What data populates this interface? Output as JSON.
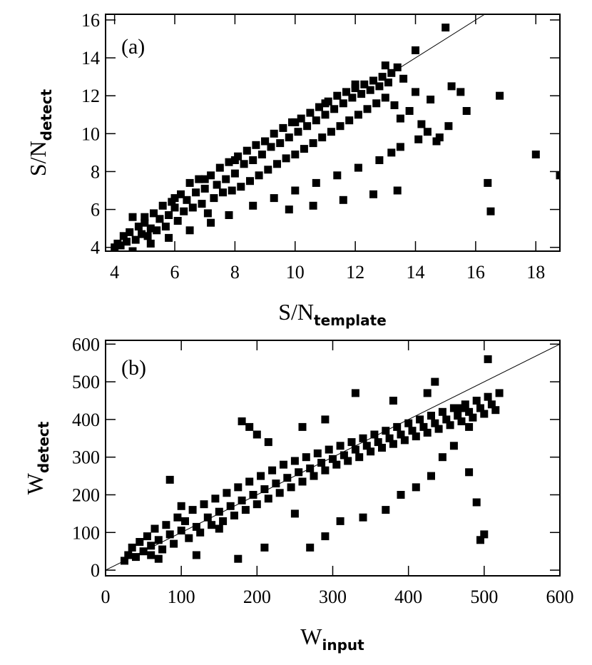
{
  "chart_data": [
    {
      "type": "scatter",
      "panel_label": "(a)",
      "xlabel_main": "S/N",
      "xlabel_sub": "template",
      "ylabel_main": "S/N",
      "ylabel_sub": "detect",
      "xlim": [
        3.7,
        18.8
      ],
      "ylim": [
        3.8,
        16.3
      ],
      "xticks": [
        4,
        6,
        8,
        10,
        12,
        14,
        16,
        18
      ],
      "yticks": [
        4,
        6,
        8,
        10,
        12,
        14,
        16
      ],
      "reference_line": {
        "type": "y=x",
        "from": 13.4,
        "to": 16.5
      },
      "x": [
        4.0,
        4.1,
        4.2,
        4.3,
        4.4,
        4.5,
        4.6,
        4.7,
        4.8,
        4.9,
        5.0,
        5.1,
        5.2,
        5.3,
        5.4,
        5.5,
        5.6,
        5.7,
        5.8,
        5.9,
        6.0,
        6.1,
        6.2,
        6.3,
        6.4,
        6.5,
        6.6,
        6.7,
        6.8,
        6.9,
        7.0,
        7.1,
        7.2,
        7.3,
        7.4,
        7.5,
        7.6,
        7.7,
        7.8,
        7.9,
        8.0,
        8.1,
        8.2,
        8.3,
        8.4,
        8.5,
        8.6,
        8.7,
        8.8,
        8.9,
        9.0,
        9.1,
        9.2,
        9.3,
        9.4,
        9.5,
        9.6,
        9.7,
        9.8,
        9.9,
        10.0,
        10.1,
        10.2,
        10.3,
        10.4,
        10.5,
        10.6,
        10.7,
        10.8,
        10.9,
        11.0,
        11.1,
        11.2,
        11.3,
        11.4,
        11.5,
        11.6,
        11.7,
        11.8,
        11.9,
        12.0,
        12.1,
        12.2,
        12.3,
        12.4,
        12.5,
        12.6,
        12.7,
        12.8,
        12.9,
        13.0,
        13.1,
        13.2,
        13.3,
        13.4,
        13.5,
        13.6,
        13.8,
        14.0,
        14.2,
        14.5,
        14.7,
        15.0,
        15.2,
        15.5,
        15.7,
        16.4,
        16.5,
        16.8,
        18.0,
        18.8,
        4.6,
        5.2,
        5.8,
        6.5,
        7.2,
        7.8,
        8.6,
        9.3,
        10.0,
        10.7,
        11.4,
        12.1,
        12.8,
        13.2,
        13.5,
        14.1,
        14.4,
        15.1,
        9.8,
        10.6,
        11.6,
        12.6,
        13.4,
        14.8,
        5.0,
        6.0,
        7.0,
        8.0,
        9.0,
        10.0,
        11.0,
        12.0,
        13.0,
        14.0
      ],
      "y": [
        4.0,
        4.2,
        4.1,
        4.6,
        4.3,
        4.8,
        5.6,
        4.4,
        5.1,
        4.7,
        5.3,
        4.6,
        5.0,
        5.8,
        4.9,
        5.5,
        6.2,
        5.1,
        5.7,
        6.4,
        6.1,
        5.4,
        6.8,
        5.9,
        6.5,
        7.4,
        6.1,
        6.9,
        7.6,
        6.3,
        7.1,
        5.8,
        7.8,
        6.6,
        7.3,
        8.2,
        6.9,
        7.6,
        8.5,
        7.0,
        7.9,
        8.8,
        7.2,
        8.4,
        9.1,
        7.5,
        8.6,
        9.4,
        7.8,
        8.9,
        9.6,
        8.1,
        9.3,
        10.0,
        8.4,
        9.5,
        10.3,
        8.7,
        9.8,
        10.6,
        8.9,
        10.1,
        10.8,
        9.2,
        10.4,
        11.1,
        9.5,
        10.7,
        11.4,
        9.8,
        11.0,
        11.7,
        10.1,
        11.3,
        12.0,
        10.4,
        11.6,
        12.2,
        10.7,
        11.9,
        12.4,
        11.0,
        12.1,
        12.6,
        11.3,
        12.3,
        12.8,
        11.6,
        12.5,
        13.0,
        11.9,
        12.7,
        13.2,
        11.5,
        13.5,
        10.8,
        12.9,
        11.2,
        12.2,
        10.5,
        11.8,
        9.6,
        15.6,
        12.5,
        12.2,
        11.2,
        7.4,
        5.9,
        12.0,
        8.9,
        7.8,
        3.8,
        4.2,
        4.5,
        4.9,
        5.3,
        5.7,
        6.2,
        6.6,
        7.0,
        7.4,
        7.8,
        8.2,
        8.6,
        9.0,
        9.3,
        9.7,
        10.1,
        10.4,
        6.0,
        6.2,
        6.5,
        6.8,
        7.0,
        9.8,
        5.6,
        6.6,
        7.6,
        8.6,
        9.6,
        10.6,
        11.6,
        12.6,
        13.6,
        14.4
      ]
    },
    {
      "type": "scatter",
      "panel_label": "(b)",
      "xlabel_main": "W",
      "xlabel_sub": "input",
      "ylabel_main": "W",
      "ylabel_sub": "detect",
      "xlim": [
        0,
        600
      ],
      "ylim": [
        -15,
        610
      ],
      "xticks": [
        0,
        100,
        200,
        300,
        400,
        500,
        600
      ],
      "yticks": [
        0,
        100,
        200,
        300,
        400,
        500,
        600
      ],
      "reference_line": {
        "type": "y=x",
        "from": 0,
        "to": 610
      },
      "x": [
        25,
        30,
        35,
        40,
        45,
        50,
        55,
        60,
        65,
        70,
        75,
        80,
        85,
        90,
        95,
        100,
        105,
        110,
        115,
        120,
        125,
        130,
        135,
        140,
        145,
        150,
        155,
        160,
        165,
        170,
        175,
        180,
        185,
        190,
        195,
        200,
        205,
        210,
        215,
        220,
        225,
        230,
        235,
        240,
        245,
        250,
        255,
        260,
        265,
        270,
        275,
        280,
        285,
        290,
        295,
        300,
        305,
        310,
        315,
        320,
        325,
        330,
        335,
        340,
        345,
        350,
        355,
        360,
        365,
        370,
        375,
        380,
        385,
        390,
        395,
        400,
        405,
        410,
        415,
        420,
        425,
        430,
        435,
        440,
        445,
        450,
        455,
        460,
        465,
        470,
        475,
        480,
        485,
        490,
        495,
        500,
        505,
        510,
        515,
        520,
        180,
        190,
        200,
        215,
        260,
        290,
        330,
        380,
        435,
        425,
        470,
        480,
        490,
        495,
        500,
        505,
        60,
        70,
        85,
        100,
        120,
        150,
        175,
        210,
        250,
        270,
        290,
        310,
        340,
        370,
        390,
        410,
        430,
        445,
        460,
        480
      ],
      "y": [
        25,
        40,
        60,
        35,
        75,
        50,
        90,
        65,
        110,
        80,
        55,
        120,
        95,
        70,
        140,
        105,
        130,
        85,
        160,
        115,
        100,
        175,
        140,
        120,
        190,
        155,
        130,
        205,
        170,
        145,
        220,
        185,
        160,
        235,
        200,
        175,
        250,
        215,
        190,
        265,
        230,
        205,
        280,
        245,
        220,
        290,
        260,
        235,
        300,
        270,
        250,
        310,
        285,
        265,
        320,
        295,
        280,
        330,
        305,
        290,
        340,
        320,
        300,
        350,
        330,
        315,
        360,
        340,
        325,
        370,
        350,
        335,
        380,
        360,
        345,
        390,
        370,
        355,
        400,
        380,
        365,
        410,
        390,
        375,
        420,
        400,
        385,
        430,
        410,
        395,
        440,
        420,
        405,
        450,
        430,
        415,
        460,
        440,
        425,
        470,
        395,
        380,
        360,
        340,
        380,
        400,
        470,
        450,
        500,
        470,
        430,
        260,
        180,
        80,
        95,
        560,
        40,
        30,
        240,
        170,
        40,
        110,
        30,
        60,
        150,
        60,
        90,
        130,
        140,
        160,
        200,
        220,
        250,
        300,
        330,
        380
      ]
    }
  ]
}
